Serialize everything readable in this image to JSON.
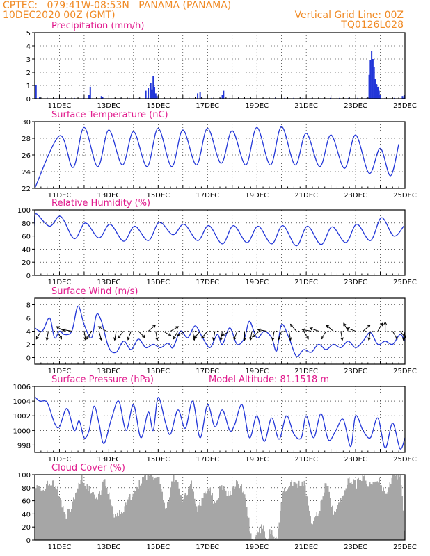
{
  "header": {
    "line1_left": "CPTEC:   079:41W-08:53N   PANAMA (PANAMA)",
    "line2_left": "10DEC2020 00Z (GMT)",
    "line1_right": "Vertical Grid Line: 00Z",
    "line2_right": "TQ0126L028"
  },
  "colors": {
    "header": "#f08a24",
    "title": "#e0198c",
    "series": "#2236d8",
    "cloud": "#a6a6a6",
    "grid": "#000000"
  },
  "x_axis": {
    "tick_labels": [
      "11DEC",
      "13DEC",
      "15DEC",
      "17DEC",
      "19DEC",
      "21DEC",
      "23DEC",
      "25DEC"
    ],
    "tick_days": [
      1,
      3,
      5,
      7,
      9,
      11,
      13,
      15
    ],
    "range_days": [
      0,
      15
    ]
  },
  "chart_data": [
    {
      "id": "precip",
      "type": "bar",
      "title": "Precipitation (mm/h)",
      "ylim": [
        0,
        5
      ],
      "yticks": [
        0,
        1,
        2,
        3,
        4,
        5
      ],
      "events": [
        {
          "day": 0.05,
          "value": 1.0
        },
        {
          "day": 0.2,
          "value": 0.15
        },
        {
          "day": 2.2,
          "value": 0.3
        },
        {
          "day": 2.25,
          "value": 0.9
        },
        {
          "day": 2.7,
          "value": 0.2
        },
        {
          "day": 2.75,
          "value": 0.1
        },
        {
          "day": 4.5,
          "value": 0.6
        },
        {
          "day": 4.6,
          "value": 0.8
        },
        {
          "day": 4.7,
          "value": 1.2
        },
        {
          "day": 4.75,
          "value": 0.7
        },
        {
          "day": 4.8,
          "value": 1.7
        },
        {
          "day": 4.85,
          "value": 0.9
        },
        {
          "day": 4.9,
          "value": 0.4
        },
        {
          "day": 4.95,
          "value": 0.2
        },
        {
          "day": 6.6,
          "value": 0.4
        },
        {
          "day": 6.7,
          "value": 0.5
        },
        {
          "day": 7.6,
          "value": 0.3
        },
        {
          "day": 7.65,
          "value": 0.6
        },
        {
          "day": 13.55,
          "value": 1.8
        },
        {
          "day": 13.6,
          "value": 2.9
        },
        {
          "day": 13.65,
          "value": 3.6
        },
        {
          "day": 13.7,
          "value": 3.0
        },
        {
          "day": 13.75,
          "value": 2.4
        },
        {
          "day": 13.8,
          "value": 1.5
        },
        {
          "day": 13.85,
          "value": 1.1
        },
        {
          "day": 13.9,
          "value": 0.9
        },
        {
          "day": 13.95,
          "value": 0.6
        },
        {
          "day": 14.0,
          "value": 0.3
        },
        {
          "day": 14.9,
          "value": 0.2
        },
        {
          "day": 14.97,
          "value": 0.3
        }
      ]
    },
    {
      "id": "temp",
      "type": "line",
      "title": "Surface Temperature (nC)",
      "ylim": [
        22,
        30
      ],
      "yticks": [
        22,
        24,
        26,
        28,
        30
      ],
      "mean": 26.0,
      "start_offset": -3.0,
      "start_decay_days": 0.6,
      "daily_peak_days": [
        1.0,
        2.0,
        3.0,
        4.0,
        5.0,
        6.0,
        7.0,
        8.0,
        9.0,
        10.0,
        11.0,
        12.0,
        13.0,
        14.0,
        14.75
      ],
      "daily_peaks": [
        28.3,
        29.3,
        29.0,
        28.8,
        29.2,
        29.0,
        29.2,
        28.9,
        29.3,
        29.4,
        28.6,
        28.4,
        28.4,
        26.8,
        27.3
      ],
      "daily_mins": [
        24.5,
        24.6,
        24.8,
        24.6,
        24.6,
        24.8,
        25.0,
        24.8,
        24.8,
        24.8,
        24.6,
        24.4,
        23.8,
        23.5,
        25.6
      ]
    },
    {
      "id": "rh",
      "type": "line",
      "title": "Relative Humidity (%)",
      "ylim": [
        0,
        100
      ],
      "yticks": [
        0,
        20,
        40,
        60,
        80,
        100
      ],
      "daily_peak_days": [
        0.05,
        1.05,
        2.05,
        3.05,
        4.05,
        5.05,
        6.05,
        7.05,
        8.05,
        9.05,
        10.05,
        11.05,
        12.05,
        13.05,
        14.05,
        14.95
      ],
      "daily_peaks": [
        94,
        90,
        80,
        78,
        75,
        81,
        78,
        76,
        76,
        75,
        76,
        75,
        74,
        78,
        88,
        75
      ],
      "daily_mins": [
        75,
        56,
        57,
        52,
        53,
        62,
        53,
        48,
        50,
        48,
        45,
        47,
        50,
        53,
        60,
        58
      ]
    },
    {
      "id": "wind",
      "type": "line",
      "title": "Surface Wind (m/s)",
      "ylim": [
        -1,
        9
      ],
      "yticks": [
        0,
        2,
        4,
        6,
        8
      ],
      "speed_points": [
        [
          0,
          4.5
        ],
        [
          0.3,
          4.0
        ],
        [
          0.6,
          6.0
        ],
        [
          0.8,
          3.0
        ],
        [
          1.0,
          4.0
        ],
        [
          1.2,
          3.5
        ],
        [
          1.5,
          4.0
        ],
        [
          1.75,
          7.8
        ],
        [
          2.0,
          5.0
        ],
        [
          2.3,
          3.0
        ],
        [
          2.5,
          6.5
        ],
        [
          2.7,
          5.5
        ],
        [
          3.0,
          1.5
        ],
        [
          3.3,
          0.8
        ],
        [
          3.6,
          2.5
        ],
        [
          3.9,
          1.2
        ],
        [
          4.2,
          2.8
        ],
        [
          4.5,
          1.5
        ],
        [
          4.8,
          2.0
        ],
        [
          5.1,
          1.5
        ],
        [
          5.4,
          2.2
        ],
        [
          5.6,
          1.5
        ],
        [
          5.9,
          4.0
        ],
        [
          6.2,
          3.0
        ],
        [
          6.5,
          4.8
        ],
        [
          6.8,
          3.0
        ],
        [
          7.1,
          1.5
        ],
        [
          7.4,
          3.5
        ],
        [
          7.6,
          2.0
        ],
        [
          7.9,
          4.5
        ],
        [
          8.2,
          2.0
        ],
        [
          8.5,
          3.0
        ],
        [
          8.7,
          5.5
        ],
        [
          9.0,
          3.0
        ],
        [
          9.3,
          4.0
        ],
        [
          9.6,
          3.0
        ],
        [
          9.8,
          1.0
        ],
        [
          10.0,
          5.0
        ],
        [
          10.3,
          3.0
        ],
        [
          10.6,
          0.2
        ],
        [
          10.9,
          1.2
        ],
        [
          11.2,
          0.8
        ],
        [
          11.5,
          2.0
        ],
        [
          11.8,
          1.2
        ],
        [
          12.1,
          2.0
        ],
        [
          12.4,
          1.5
        ],
        [
          12.7,
          2.5
        ],
        [
          13.0,
          1.5
        ],
        [
          13.3,
          2.5
        ],
        [
          13.6,
          3.8
        ],
        [
          13.9,
          2.0
        ],
        [
          14.2,
          2.5
        ],
        [
          14.5,
          2.0
        ],
        [
          14.8,
          3.5
        ],
        [
          15.0,
          2.5
        ]
      ],
      "vectors": [
        [
          0.25,
          -120
        ],
        [
          0.55,
          -100
        ],
        [
          0.9,
          -60
        ],
        [
          1.2,
          150
        ],
        [
          1.5,
          170
        ],
        [
          2.0,
          -80
        ],
        [
          2.3,
          -120
        ],
        [
          2.6,
          -75
        ],
        [
          2.9,
          150
        ],
        [
          3.3,
          -100
        ],
        [
          3.6,
          -130
        ],
        [
          3.9,
          -110
        ],
        [
          4.2,
          -45
        ],
        [
          4.6,
          40
        ],
        [
          4.9,
          -80
        ],
        [
          5.2,
          -30
        ],
        [
          5.5,
          30
        ],
        [
          5.8,
          -120
        ],
        [
          6.1,
          -150
        ],
        [
          6.4,
          -80
        ],
        [
          6.7,
          -130
        ],
        [
          7.0,
          -130
        ],
        [
          7.3,
          -100
        ],
        [
          7.6,
          -100
        ],
        [
          7.9,
          -150
        ],
        [
          8.2,
          -110
        ],
        [
          8.5,
          -90
        ],
        [
          8.8,
          -100
        ],
        [
          9.1,
          -140
        ],
        [
          9.4,
          170
        ],
        [
          9.7,
          -100
        ],
        [
          10.0,
          -110
        ],
        [
          10.3,
          -80
        ],
        [
          10.6,
          130
        ],
        [
          10.9,
          -60
        ],
        [
          11.2,
          170
        ],
        [
          11.5,
          160
        ],
        [
          11.8,
          -120
        ],
        [
          12.1,
          140
        ],
        [
          12.4,
          -80
        ],
        [
          12.7,
          120
        ],
        [
          13.0,
          160
        ],
        [
          13.3,
          40
        ],
        [
          13.6,
          -100
        ],
        [
          13.9,
          60
        ],
        [
          14.2,
          90
        ],
        [
          14.5,
          -60
        ],
        [
          14.8,
          -50
        ],
        [
          15.0,
          -100
        ]
      ]
    },
    {
      "id": "pres",
      "type": "line",
      "title": "Surface Pressure (hPa)",
      "annotation": "Model Altitude: 81.1518 m",
      "ylim": [
        997,
        1006
      ],
      "yticks": [
        998,
        1000,
        1002,
        1004,
        1006
      ],
      "points": [
        [
          0,
          1004.6
        ],
        [
          0.2,
          1004.0
        ],
        [
          0.5,
          1003.8
        ],
        [
          0.8,
          1001.0
        ],
        [
          1.0,
          1000.5
        ],
        [
          1.3,
          1003.0
        ],
        [
          1.6,
          1000.0
        ],
        [
          1.8,
          1001.3
        ],
        [
          2.0,
          999.0
        ],
        [
          2.2,
          1000.0
        ],
        [
          2.4,
          1003.3
        ],
        [
          2.6,
          1001.0
        ],
        [
          2.8,
          998.2
        ],
        [
          3.1,
          1001.5
        ],
        [
          3.4,
          1004.0
        ],
        [
          3.7,
          1000.0
        ],
        [
          4.0,
          1003.5
        ],
        [
          4.3,
          999.0
        ],
        [
          4.6,
          1002.5
        ],
        [
          4.8,
          1000.0
        ],
        [
          5.0,
          1004.5
        ],
        [
          5.3,
          1001.0
        ],
        [
          5.5,
          999.5
        ],
        [
          5.8,
          1002.8
        ],
        [
          6.1,
          1000.3
        ],
        [
          6.4,
          1004.0
        ],
        [
          6.7,
          999.0
        ],
        [
          7.0,
          1003.5
        ],
        [
          7.3,
          1000.5
        ],
        [
          7.6,
          1002.8
        ],
        [
          7.9,
          1000.0
        ],
        [
          8.1,
          1000.8
        ],
        [
          8.4,
          1003.5
        ],
        [
          8.7,
          999.0
        ],
        [
          9.0,
          1002.0
        ],
        [
          9.3,
          998.5
        ],
        [
          9.6,
          1001.7
        ],
        [
          9.9,
          998.8
        ],
        [
          10.2,
          1002.0
        ],
        [
          10.5,
          999.5
        ],
        [
          10.8,
          999.0
        ],
        [
          11.0,
          1002.0
        ],
        [
          11.3,
          999.0
        ],
        [
          11.6,
          1002.3
        ],
        [
          11.9,
          998.7
        ],
        [
          12.2,
          1000.0
        ],
        [
          12.5,
          1001.5
        ],
        [
          12.8,
          997.8
        ],
        [
          13.0,
          1002.0
        ],
        [
          13.3,
          1000.0
        ],
        [
          13.6,
          999.0
        ],
        [
          13.9,
          1001.7
        ],
        [
          14.2,
          997.6
        ],
        [
          14.5,
          1001.0
        ],
        [
          14.8,
          997.5
        ],
        [
          15.0,
          999.0
        ]
      ]
    },
    {
      "id": "cloud",
      "type": "area",
      "title": "Cloud Cover (%)",
      "ylim": [
        0,
        100
      ],
      "yticks": [
        0,
        20,
        40,
        60,
        80,
        100
      ],
      "points": [
        [
          0,
          0
        ],
        [
          0.02,
          85
        ],
        [
          0.3,
          80
        ],
        [
          0.7,
          90
        ],
        [
          1.0,
          70
        ],
        [
          1.2,
          35
        ],
        [
          1.5,
          55
        ],
        [
          1.9,
          95
        ],
        [
          2.1,
          80
        ],
        [
          2.5,
          60
        ],
        [
          2.8,
          90
        ],
        [
          3.2,
          40
        ],
        [
          3.6,
          45
        ],
        [
          3.9,
          70
        ],
        [
          4.3,
          90
        ],
        [
          4.7,
          100
        ],
        [
          5.0,
          95
        ],
        [
          5.3,
          45
        ],
        [
          5.6,
          100
        ],
        [
          6.0,
          60
        ],
        [
          6.3,
          90
        ],
        [
          6.6,
          45
        ],
        [
          7.0,
          85
        ],
        [
          7.3,
          50
        ],
        [
          7.5,
          80
        ],
        [
          7.9,
          70
        ],
        [
          8.2,
          90
        ],
        [
          8.5,
          70
        ],
        [
          8.7,
          20
        ],
        [
          8.8,
          0
        ],
        [
          9.0,
          10
        ],
        [
          9.2,
          20
        ],
        [
          9.4,
          5
        ],
        [
          9.6,
          15
        ],
        [
          9.8,
          0
        ],
        [
          10.0,
          70
        ],
        [
          10.3,
          85
        ],
        [
          10.6,
          85
        ],
        [
          10.9,
          90
        ],
        [
          11.2,
          20
        ],
        [
          11.5,
          45
        ],
        [
          11.8,
          90
        ],
        [
          12.1,
          40
        ],
        [
          12.4,
          60
        ],
        [
          12.7,
          95
        ],
        [
          13.0,
          85
        ],
        [
          13.3,
          100
        ],
        [
          13.6,
          80
        ],
        [
          13.9,
          95
        ],
        [
          14.2,
          65
        ],
        [
          14.5,
          98
        ],
        [
          14.8,
          100
        ],
        [
          15.0,
          0
        ]
      ]
    }
  ]
}
